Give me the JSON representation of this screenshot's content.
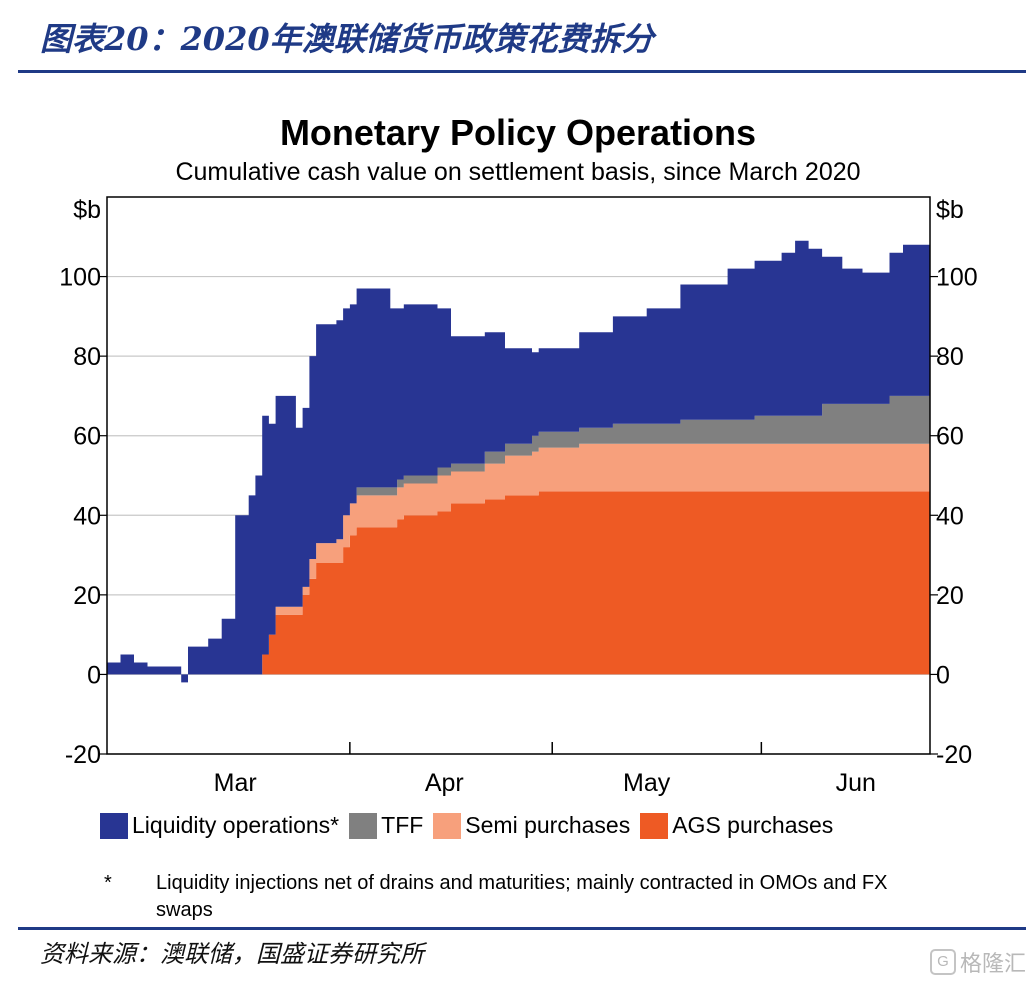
{
  "figure": {
    "title": "图表20：2020年澳联储货币政策花费拆分",
    "source": "资料来源：澳联储，国盛证券研究所",
    "watermark": "格隆汇"
  },
  "footnote": {
    "marker": "*",
    "text": "Liquidity injections net of drains and maturities; mainly contracted in OMOs and FX swaps"
  },
  "colors": {
    "liquidity": "#283593",
    "tff": "#808080",
    "semi": "#f7a07c",
    "ags": "#ee5a24",
    "frame_title": "#1f3a86"
  },
  "chart_data": {
    "type": "area",
    "stacked": true,
    "title": "Monetary Policy Operations",
    "subtitle": "Cumulative cash value on settlement basis, since March 2020",
    "ylabel_left": "$b",
    "ylabel_right": "$b",
    "ylim": [
      -20,
      120
    ],
    "yticks": [
      -20,
      0,
      20,
      40,
      60,
      80,
      100
    ],
    "ytick_labels": [
      "-20",
      "0",
      "20",
      "40",
      "60",
      "80",
      "100"
    ],
    "x_month_labels": [
      "Mar",
      "Apr",
      "May",
      "Jun"
    ],
    "x_month_label_positions": [
      "2020-03-15",
      "2020-04-15",
      "2020-05-15",
      "2020-06-15"
    ],
    "x_month_boundaries": [
      "2020-04-01",
      "2020-05-01",
      "2020-06-01"
    ],
    "x_range": [
      "2020-02-25",
      "2020-06-26"
    ],
    "grid_y": true,
    "legend_position": "bottom",
    "series": [
      {
        "name": "AGS purchases",
        "color_key": "ags",
        "points": [
          [
            "2020-02-25",
            0
          ],
          [
            "2020-03-18",
            0
          ],
          [
            "2020-03-19",
            5
          ],
          [
            "2020-03-20",
            10
          ],
          [
            "2020-03-21",
            15
          ],
          [
            "2020-03-24",
            15
          ],
          [
            "2020-03-25",
            20
          ],
          [
            "2020-03-26",
            24
          ],
          [
            "2020-03-27",
            28
          ],
          [
            "2020-03-30",
            28
          ],
          [
            "2020-03-31",
            32
          ],
          [
            "2020-04-01",
            35
          ],
          [
            "2020-04-02",
            37
          ],
          [
            "2020-04-07",
            37
          ],
          [
            "2020-04-08",
            39
          ],
          [
            "2020-04-09",
            40
          ],
          [
            "2020-04-14",
            41
          ],
          [
            "2020-04-16",
            43
          ],
          [
            "2020-04-21",
            44
          ],
          [
            "2020-04-24",
            45
          ],
          [
            "2020-04-28",
            45
          ],
          [
            "2020-04-29",
            46
          ],
          [
            "2020-05-05",
            46
          ],
          [
            "2020-06-26",
            46
          ]
        ]
      },
      {
        "name": "Semi purchases",
        "color_key": "semi",
        "points": [
          [
            "2020-02-25",
            0
          ],
          [
            "2020-03-20",
            0
          ],
          [
            "2020-03-21",
            2
          ],
          [
            "2020-03-24",
            2
          ],
          [
            "2020-03-26",
            5
          ],
          [
            "2020-03-30",
            6
          ],
          [
            "2020-03-31",
            8
          ],
          [
            "2020-04-02",
            8
          ],
          [
            "2020-04-07",
            8
          ],
          [
            "2020-04-08",
            8
          ],
          [
            "2020-04-09",
            8
          ],
          [
            "2020-04-14",
            9
          ],
          [
            "2020-04-16",
            8
          ],
          [
            "2020-04-21",
            9
          ],
          [
            "2020-04-24",
            10
          ],
          [
            "2020-04-28",
            11
          ],
          [
            "2020-04-29",
            11
          ],
          [
            "2020-05-05",
            12
          ],
          [
            "2020-06-26",
            12.5
          ]
        ]
      },
      {
        "name": "TFF",
        "color_key": "tff",
        "points": [
          [
            "2020-02-25",
            0
          ],
          [
            "2020-03-31",
            0
          ],
          [
            "2020-04-02",
            2
          ],
          [
            "2020-04-08",
            2
          ],
          [
            "2020-04-14",
            2
          ],
          [
            "2020-04-21",
            3
          ],
          [
            "2020-04-24",
            3
          ],
          [
            "2020-04-28",
            4
          ],
          [
            "2020-05-05",
            4
          ],
          [
            "2020-05-10",
            5
          ],
          [
            "2020-05-15",
            5
          ],
          [
            "2020-05-20",
            6
          ],
          [
            "2020-05-31",
            7
          ],
          [
            "2020-06-10",
            10
          ],
          [
            "2020-06-20",
            12
          ],
          [
            "2020-06-26",
            14
          ]
        ]
      },
      {
        "name": "Liquidity operations*",
        "color_key": "liquidity",
        "points": [
          [
            "2020-02-25",
            3
          ],
          [
            "2020-02-27",
            5
          ],
          [
            "2020-02-29",
            3
          ],
          [
            "2020-03-02",
            2
          ],
          [
            "2020-03-05",
            2
          ],
          [
            "2020-03-07",
            -2
          ],
          [
            "2020-03-08",
            7
          ],
          [
            "2020-03-11",
            9
          ],
          [
            "2020-03-13",
            14
          ],
          [
            "2020-03-15",
            40
          ],
          [
            "2020-03-17",
            45
          ],
          [
            "2020-03-18",
            50
          ],
          [
            "2020-03-19",
            60
          ],
          [
            "2020-03-20",
            53
          ],
          [
            "2020-03-21",
            53
          ],
          [
            "2020-03-24",
            45
          ],
          [
            "2020-03-25",
            45
          ],
          [
            "2020-03-26",
            51
          ],
          [
            "2020-03-27",
            55
          ],
          [
            "2020-03-30",
            55
          ],
          [
            "2020-03-31",
            52
          ],
          [
            "2020-04-01",
            50
          ],
          [
            "2020-04-02",
            50
          ],
          [
            "2020-04-07",
            45
          ],
          [
            "2020-04-08",
            43
          ],
          [
            "2020-04-14",
            40
          ],
          [
            "2020-04-16",
            32
          ],
          [
            "2020-04-21",
            30
          ],
          [
            "2020-04-24",
            24
          ],
          [
            "2020-04-28",
            21
          ],
          [
            "2020-04-29",
            21
          ],
          [
            "2020-05-05",
            24
          ],
          [
            "2020-05-10",
            27
          ],
          [
            "2020-05-15",
            29
          ],
          [
            "2020-05-20",
            34
          ],
          [
            "2020-05-27",
            38
          ],
          [
            "2020-05-31",
            39
          ],
          [
            "2020-06-04",
            41
          ],
          [
            "2020-06-06",
            44
          ],
          [
            "2020-06-08",
            42
          ],
          [
            "2020-06-10",
            37
          ],
          [
            "2020-06-13",
            34
          ],
          [
            "2020-06-16",
            33
          ],
          [
            "2020-06-20",
            36
          ],
          [
            "2020-06-22",
            38
          ],
          [
            "2020-06-26",
            39
          ]
        ]
      }
    ]
  },
  "legend": {
    "items": [
      {
        "label": "Liquidity operations*",
        "color_key": "liquidity"
      },
      {
        "label": "TFF",
        "color_key": "tff"
      },
      {
        "label": "Semi purchases",
        "color_key": "semi"
      },
      {
        "label": "AGS purchases",
        "color_key": "ags"
      }
    ]
  }
}
